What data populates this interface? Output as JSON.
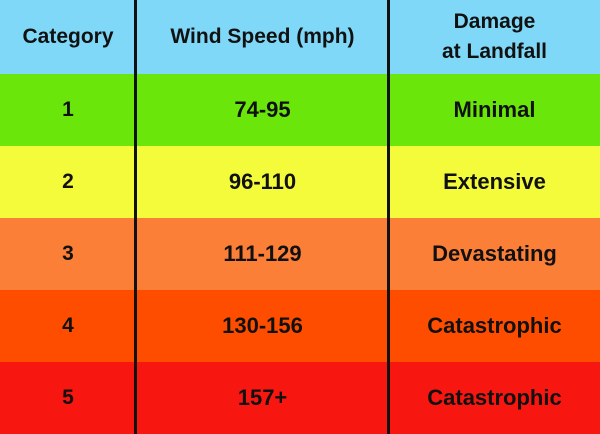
{
  "header": {
    "category": "Category",
    "wind_speed": "Wind Speed (mph)",
    "damage": "Damage\nat Landfall"
  },
  "rows": [
    {
      "category": "1",
      "wind_speed": "74-95",
      "damage": "Minimal"
    },
    {
      "category": "2",
      "wind_speed": "96-110",
      "damage": "Extensive"
    },
    {
      "category": "3",
      "wind_speed": "111-129",
      "damage": "Devastating"
    },
    {
      "category": "4",
      "wind_speed": "130-156",
      "damage": "Catastrophic"
    },
    {
      "category": "5",
      "wind_speed": "157+",
      "damage": "Catastrophic"
    }
  ],
  "colors": {
    "header": "#7fd8f7",
    "row_1": "#6ae60a",
    "row_2": "#f3fb3a",
    "row_3": "#fb7f36",
    "row_4": "#ff4d00",
    "row_5": "#f81610",
    "divider": "#111111"
  }
}
